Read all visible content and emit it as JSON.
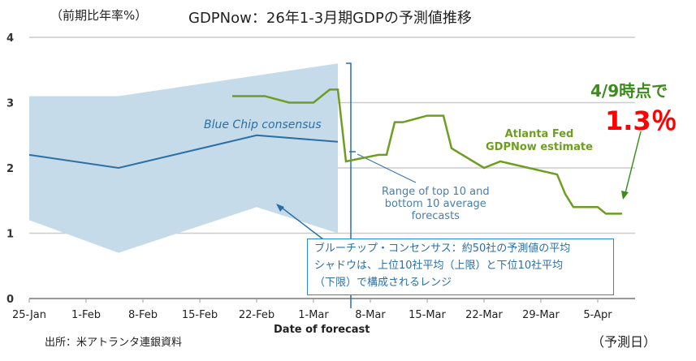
{
  "header": {
    "unit": "（前期比年率%）",
    "title": "GDPNow：26年1-3月期GDPの予測値推移"
  },
  "annotation": {
    "date_note": "4/9時点で",
    "value_note": "1.3％"
  },
  "labels": {
    "blue_chip": "Blue Chip consensus",
    "gdpnow": [
      "Atlanta Fed",
      "GDPNow estimate"
    ],
    "range": [
      "Range of top 10 and",
      "bottom 10 average",
      "forecasts"
    ],
    "box": [
      "ブルーチップ・コンセンサス：約50社の予測値の平均",
      "シャドウは、上位10社平均（上限）と下位10社平均",
      "（下限）で構成されるレンジ"
    ]
  },
  "footer": {
    "source": "出所：米アトランタ連銀資料",
    "x_unit": "（予測日）"
  },
  "colors": {
    "gdpnow": "#6e9e20",
    "blue_chip": "#2b6fa5",
    "range": "#c5dbea",
    "annotation_green": "#3e8a1e",
    "annotation_red": "#ff0000"
  },
  "chart_data": {
    "type": "line",
    "xlabel": "Date of forecast",
    "ylabel": "",
    "ylim": [
      0,
      4
    ],
    "yticks": [
      "0",
      "1",
      "2",
      "3",
      "4"
    ],
    "xticks": [
      "25-Jan",
      "1-Feb",
      "8-Feb",
      "15-Feb",
      "22-Feb",
      "1-Mar",
      "8-Mar",
      "15-Mar",
      "22-Mar",
      "29-Mar",
      "5-Apr"
    ],
    "grid": true,
    "series": [
      {
        "name": "Atlanta Fed GDPNow estimate",
        "x": [
          "02-19",
          "02-23",
          "02-26",
          "03-01",
          "03-03",
          "03-04",
          "03-05",
          "03-09",
          "03-10",
          "03-11",
          "03-12",
          "03-15",
          "03-17",
          "03-18",
          "03-22",
          "03-24",
          "03-31",
          "04-01",
          "04-02",
          "04-05",
          "04-06",
          "04-08"
        ],
        "y": [
          3.1,
          3.1,
          3.0,
          3.0,
          3.2,
          3.2,
          2.1,
          2.2,
          2.2,
          2.7,
          2.7,
          2.8,
          2.8,
          2.3,
          2.0,
          2.1,
          1.9,
          1.6,
          1.4,
          1.4,
          1.3,
          1.3
        ]
      },
      {
        "name": "Blue Chip consensus",
        "x": [
          "01-25",
          "02-05",
          "02-22",
          "03-04"
        ],
        "y": [
          2.2,
          2.0,
          2.5,
          2.4
        ]
      }
    ],
    "range": {
      "name": "Range of top 10 and bottom 10 average forecasts",
      "upper": {
        "x": [
          "01-25",
          "02-05",
          "03-04"
        ],
        "y": [
          3.1,
          3.1,
          3.6
        ]
      },
      "lower": {
        "x": [
          "01-25",
          "02-05",
          "02-22",
          "03-04"
        ],
        "y": [
          1.2,
          0.7,
          1.4,
          1.0
        ]
      }
    }
  }
}
